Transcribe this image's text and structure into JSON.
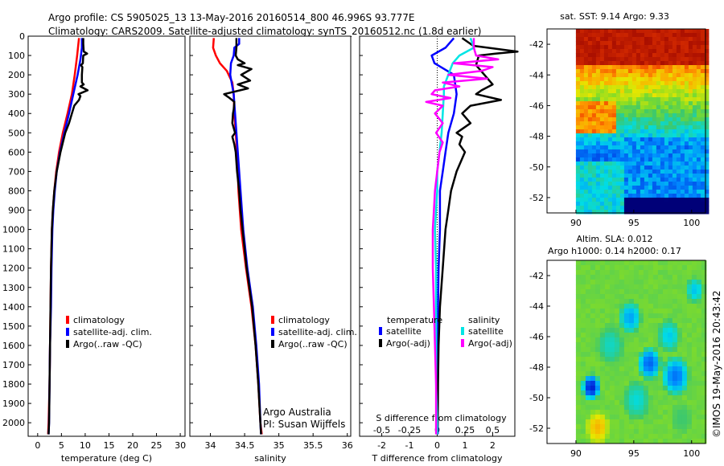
{
  "title": {
    "line1": "Argo profile: CS 5905025_13 13-May-2016 20160514_800 46.996S 93.777E",
    "line2": "Climatology: CARS2009. Satellite-adjusted climatology: synTS_20160512.nc (1.8d earlier)"
  },
  "credits": {
    "owner": "Argo Australia",
    "pi": "PI: Susan Wijffels",
    "imos": "©IMOS 19-May-2016 20:43:42"
  },
  "colors": {
    "climatology": "#ff0000",
    "satellite_adj": "#0000ff",
    "argo": "#000000",
    "satellite_salinity": "#00e5e5",
    "argo_salinity_diff": "#ff00ff"
  },
  "chart_data": [
    {
      "id": "temperature",
      "type": "line",
      "xlabel": "temperature (deg C)",
      "xlim": [
        -2,
        31
      ],
      "xticks": [
        0,
        5,
        10,
        15,
        20,
        25,
        30
      ],
      "ylim": [
        2070,
        0
      ],
      "yticks": [
        0,
        100,
        200,
        300,
        400,
        500,
        600,
        700,
        800,
        900,
        1000,
        1100,
        1200,
        1300,
        1400,
        1500,
        1600,
        1700,
        1800,
        1900,
        2000
      ],
      "legend": [
        "climatology",
        "satellite-adj. clim.",
        "Argo(..raw -QC)"
      ],
      "series": [
        {
          "name": "climatology",
          "color": "#ff0000",
          "depth": [
            10,
            100,
            200,
            300,
            400,
            500,
            600,
            700,
            800,
            900,
            1000,
            1200,
            1400,
            1600,
            1800,
            2000,
            2060
          ],
          "values": [
            8.7,
            8.3,
            7.8,
            7.2,
            6.3,
            5.3,
            4.5,
            3.9,
            3.5,
            3.2,
            3.0,
            2.8,
            2.7,
            2.6,
            2.5,
            2.3,
            2.2
          ]
        },
        {
          "name": "satellite-adj. clim.",
          "color": "#0000ff",
          "depth": [
            10,
            60,
            120,
            200,
            300,
            400,
            500,
            600,
            700,
            800,
            900,
            1000,
            1200,
            1400,
            1600,
            1800,
            2000,
            2060
          ],
          "values": [
            9.3,
            9.3,
            9.0,
            8.4,
            7.5,
            6.6,
            5.6,
            4.7,
            4.0,
            3.6,
            3.3,
            3.1,
            2.9,
            2.8,
            2.6,
            2.5,
            2.4,
            2.3
          ]
        },
        {
          "name": "Argo(..raw -QC)",
          "color": "#000000",
          "depth": [
            10,
            40,
            80,
            90,
            100,
            140,
            150,
            160,
            200,
            240,
            250,
            260,
            280,
            300,
            310,
            330,
            360,
            400,
            450,
            500,
            600,
            700,
            800,
            900,
            1000,
            1200,
            1400,
            1600,
            1800,
            2000,
            2060
          ],
          "values": [
            9.6,
            9.6,
            9.7,
            10.4,
            9.6,
            9.5,
            9.1,
            9.4,
            9.3,
            9.3,
            9.7,
            9.0,
            10.5,
            8.6,
            9.0,
            8.7,
            7.7,
            7.2,
            6.6,
            5.8,
            4.8,
            4.0,
            3.5,
            3.2,
            3.0,
            2.8,
            2.7,
            2.6,
            2.5,
            2.4,
            2.3
          ]
        }
      ]
    },
    {
      "id": "salinity",
      "type": "line",
      "xlabel": "salinity",
      "xlim": [
        33.7,
        36.05
      ],
      "xticks": [
        34,
        34.5,
        35,
        35.5,
        36
      ],
      "ylim": [
        2070,
        0
      ],
      "legend": [
        "climatology",
        "satellite-adj. clim.",
        "Argo(..raw -QC)"
      ],
      "series": [
        {
          "name": "climatology",
          "color": "#ff0000",
          "depth": [
            10,
            60,
            100,
            140,
            180,
            240,
            300,
            400,
            500,
            600,
            700,
            800,
            1000,
            1200,
            1400,
            1600,
            1800,
            2000,
            2060
          ],
          "values": [
            34.05,
            34.04,
            34.08,
            34.14,
            34.24,
            34.32,
            34.34,
            34.35,
            34.37,
            34.39,
            34.4,
            34.41,
            34.45,
            34.52,
            34.6,
            34.66,
            34.7,
            34.73,
            34.75
          ]
        },
        {
          "name": "satellite-adj. clim.",
          "color": "#0000ff",
          "depth": [
            10,
            40,
            60,
            100,
            140,
            200,
            260,
            300,
            400,
            500,
            600,
            700,
            800,
            1000,
            1200,
            1400,
            1600,
            1800,
            2000,
            2060
          ],
          "values": [
            34.42,
            34.42,
            34.35,
            34.34,
            34.3,
            34.29,
            34.32,
            34.34,
            34.36,
            34.38,
            34.4,
            34.42,
            34.44,
            34.48,
            34.54,
            34.62,
            34.67,
            34.71,
            34.73,
            34.74
          ]
        },
        {
          "name": "Argo(..raw -QC)",
          "color": "#000000",
          "depth": [
            10,
            60,
            100,
            120,
            140,
            150,
            170,
            200,
            230,
            250,
            270,
            300,
            320,
            340,
            380,
            400,
            450,
            500,
            520,
            560,
            600,
            700,
            800,
            900,
            1000,
            1200,
            1400,
            1600,
            1800,
            2000,
            2060
          ],
          "values": [
            34.38,
            34.38,
            34.37,
            34.4,
            34.5,
            34.4,
            34.6,
            34.45,
            34.58,
            34.4,
            34.55,
            34.2,
            34.28,
            34.35,
            34.34,
            34.33,
            34.32,
            34.36,
            34.32,
            34.35,
            34.37,
            34.39,
            34.42,
            34.44,
            34.47,
            34.53,
            34.61,
            34.66,
            34.7,
            34.73,
            34.74
          ]
        }
      ]
    },
    {
      "id": "difference",
      "type": "line",
      "xlabel": "T difference from climatology",
      "xlabel_top": "S difference from climatology",
      "xlim": [
        -2.8,
        2.8
      ],
      "xticks": [
        -2,
        -1,
        0,
        1,
        2
      ],
      "xticks_top": [
        -0.5,
        -0.25,
        0,
        0.25,
        0.5
      ],
      "ylim": [
        2070,
        0
      ],
      "legend_left_title": "temperature",
      "legend_right_title": "salinity",
      "legend": [
        "satellite",
        "Argo(-adj)",
        "satellite",
        "Argo(-adj)"
      ],
      "series": [
        {
          "name": "satellite",
          "quantity": "temperature",
          "color": "#0000ff",
          "depth": [
            10,
            60,
            100,
            140,
            200,
            300,
            400,
            500,
            600,
            700,
            800,
            1000,
            1200,
            1400,
            1600,
            1800,
            2000,
            2060
          ],
          "values": [
            0.6,
            0.3,
            -0.2,
            -0.1,
            0.6,
            0.7,
            0.6,
            0.4,
            0.3,
            0.2,
            0.1,
            0.1,
            0.05,
            0.03,
            0.02,
            0.02,
            0.02,
            0.02
          ]
        },
        {
          "name": "Argo(-adj)",
          "quantity": "temperature",
          "color": "#000000",
          "depth": [
            10,
            50,
            80,
            90,
            100,
            150,
            200,
            250,
            280,
            300,
            330,
            360,
            400,
            450,
            500,
            520,
            560,
            600,
            700,
            800,
            900,
            1000,
            1200,
            1400,
            1600,
            1800,
            2000,
            2060
          ],
          "values": [
            0.9,
            1.3,
            2.9,
            2.1,
            1.5,
            1.4,
            1.7,
            2.0,
            1.6,
            1.4,
            2.3,
            1.2,
            0.9,
            1.2,
            0.7,
            0.9,
            0.8,
            1.0,
            0.7,
            0.5,
            0.4,
            0.3,
            0.2,
            0.1,
            0.05,
            0.03,
            0.02,
            0.0
          ]
        },
        {
          "name": "satellite",
          "quantity": "salinity",
          "color": "#00e5e5",
          "depth": [
            10,
            60,
            100,
            140,
            200,
            260,
            300,
            400,
            500,
            600,
            700,
            800,
            1000,
            1200,
            1400,
            1600,
            1800,
            2000,
            2060
          ],
          "values": [
            0.3,
            0.33,
            0.2,
            0.14,
            0.1,
            0.06,
            0.06,
            0.05,
            0.04,
            0.02,
            0.0,
            0.0,
            -0.02,
            -0.01,
            -0.01,
            -0.01,
            -0.01,
            0.0,
            0.0
          ]
        },
        {
          "name": "Argo(-adj)",
          "quantity": "salinity",
          "color": "#ff00ff",
          "depth": [
            10,
            60,
            100,
            120,
            140,
            160,
            180,
            200,
            220,
            240,
            260,
            280,
            300,
            320,
            340,
            360,
            400,
            450,
            500,
            550,
            600,
            700,
            800,
            900,
            1000,
            1200,
            1400,
            1600,
            1800,
            2000,
            2060
          ],
          "values": [
            0.33,
            0.33,
            0.35,
            0.55,
            0.15,
            0.5,
            0.4,
            0.1,
            0.45,
            0.05,
            0.2,
            -0.02,
            -0.05,
            0.12,
            -0.1,
            0.05,
            -0.02,
            0.05,
            -0.01,
            0.05,
            0.02,
            0.0,
            -0.02,
            -0.03,
            -0.04,
            -0.04,
            -0.03,
            -0.02,
            -0.01,
            -0.01,
            -0.01
          ]
        }
      ]
    },
    {
      "id": "sst_map",
      "type": "heatmap",
      "title": "sat. SST: 9.14 Argo: 9.33",
      "xlim": [
        87.5,
        101.2
      ],
      "ylim": [
        -53,
        -41
      ],
      "xticks": [
        90,
        95,
        100
      ],
      "yticks": [
        -42,
        -44,
        -46,
        -48,
        -50,
        -52
      ],
      "data_lon_range": [
        90,
        101.2
      ]
    },
    {
      "id": "sla_map",
      "type": "heatmap",
      "title_line1": "Altim. SLA: 0.012",
      "title_line2": "Argo h1000: 0.14 h2000: 0.17",
      "xlim": [
        87.5,
        101.2
      ],
      "ylim": [
        -53,
        -41
      ],
      "xticks": [
        90,
        95,
        100
      ],
      "yticks": [
        -42,
        -44,
        -46,
        -48,
        -50,
        -52
      ],
      "data_lon_range": [
        90,
        101.2
      ]
    }
  ]
}
